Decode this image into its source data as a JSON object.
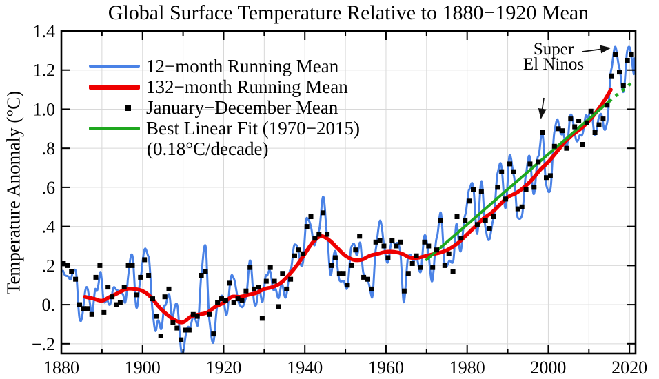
{
  "title": "Global Surface Temperature Relative to 1880−1920 Mean",
  "axes": {
    "y_label": "Temperature Anomaly (°C)",
    "y_ticks": [
      {
        "v": 1.4,
        "label": "1.4"
      },
      {
        "v": 1.2,
        "label": "1.2"
      },
      {
        "v": 1.0,
        "label": "1.0"
      },
      {
        "v": 0.8,
        "label": ".8"
      },
      {
        "v": 0.6,
        "label": ".6"
      },
      {
        "v": 0.4,
        "label": ".4"
      },
      {
        "v": 0.2,
        "label": ".2"
      },
      {
        "v": 0.0,
        "label": "0."
      },
      {
        "v": -0.2,
        "label": "−.2"
      }
    ],
    "x_ticks": [
      {
        "v": 1880,
        "label": "1880"
      },
      {
        "v": 1900,
        "label": "1900"
      },
      {
        "v": 1920,
        "label": "1920"
      },
      {
        "v": 1940,
        "label": "1940"
      },
      {
        "v": 1960,
        "label": "1960"
      },
      {
        "v": 1980,
        "label": "1980"
      },
      {
        "v": 2000,
        "label": "2000"
      },
      {
        "v": 2020,
        "label": "2020"
      }
    ],
    "x_minor_step": 10,
    "grid_color": "#d8d8d8",
    "frame_color": "#000000"
  },
  "legend": {
    "items": [
      {
        "label": "12−month Running Mean",
        "type": "line",
        "color": "#4a82e6"
      },
      {
        "label": "132−month Running Mean",
        "type": "line-thick",
        "color": "#ee0000"
      },
      {
        "label": "January−December Mean",
        "type": "square",
        "color": "#000000"
      },
      {
        "label": "Best Linear Fit (1970−2015)",
        "type": "line-mid",
        "color": "#1ea71e"
      }
    ],
    "sub_label": "(0.18°C/decade)"
  },
  "annotation": {
    "line1": "Super",
    "line2": "El Ninos",
    "targets": [
      {
        "year": 1998,
        "peak": 0.93
      },
      {
        "year": 2016,
        "peak": 1.32
      }
    ]
  },
  "chart_data": {
    "type": "line",
    "title": "Global Surface Temperature Relative to 1880−1920 Mean",
    "xlabel": "",
    "ylabel": "Temperature Anomaly (°C)",
    "xlim": [
      1880,
      2021.5
    ],
    "ylim": [
      -0.25,
      1.4
    ],
    "grid": true,
    "legend_position": "upper-left",
    "series": [
      {
        "name": "January−December Mean",
        "style": "black-squares",
        "color": "#000000",
        "start_year": 1880,
        "values": [
          0.21,
          0.2,
          0.17,
          0.13,
          0.0,
          -0.02,
          -0.02,
          -0.05,
          0.14,
          0.2,
          -0.04,
          0.09,
          0.04,
          0.0,
          0.01,
          0.09,
          0.2,
          0.2,
          0.05,
          0.14,
          0.23,
          0.15,
          0.03,
          -0.06,
          -0.16,
          0.04,
          0.08,
          -0.09,
          -0.12,
          -0.18,
          -0.13,
          -0.13,
          -0.05,
          -0.06,
          0.15,
          0.17,
          -0.05,
          -0.15,
          0.01,
          0.03,
          0.02,
          0.11,
          0.01,
          0.03,
          0.02,
          0.07,
          0.19,
          0.08,
          0.09,
          -0.07,
          0.12,
          0.19,
          0.12,
          -0.01,
          0.16,
          0.08,
          0.13,
          0.25,
          0.28,
          0.26,
          0.4,
          0.45,
          0.34,
          0.36,
          0.47,
          0.36,
          0.2,
          0.24,
          0.16,
          0.16,
          0.1,
          0.2,
          0.28,
          0.35,
          0.14,
          0.13,
          0.08,
          0.32,
          0.33,
          0.3,
          0.24,
          0.33,
          0.3,
          0.32,
          0.07,
          0.16,
          0.21,
          0.25,
          0.19,
          0.32,
          0.3,
          0.19,
          0.28,
          0.43,
          0.2,
          0.26,
          0.17,
          0.45,
          0.34,
          0.43,
          0.53,
          0.59,
          0.41,
          0.58,
          0.43,
          0.39,
          0.45,
          0.6,
          0.68,
          0.54,
          0.72,
          0.68,
          0.49,
          0.5,
          0.59,
          0.72,
          0.6,
          0.73,
          0.88,
          0.65,
          0.66,
          0.81,
          0.9,
          0.89,
          0.8,
          0.95,
          0.91,
          0.94,
          0.82,
          0.93,
          0.99,
          0.88,
          0.92,
          0.95,
          1.02,
          1.17,
          1.28,
          1.19,
          1.12,
          1.25,
          1.28
        ]
      },
      {
        "name": "132−month Running Mean",
        "style": "red-line",
        "color": "#ee0000",
        "points": [
          [
            1885.8,
            0.04
          ],
          [
            1888,
            0.03
          ],
          [
            1890,
            0.02
          ],
          [
            1892,
            0.04
          ],
          [
            1894,
            0.06
          ],
          [
            1896,
            0.08
          ],
          [
            1898,
            0.08
          ],
          [
            1900,
            0.07
          ],
          [
            1902,
            0.04
          ],
          [
            1904,
            -0.01
          ],
          [
            1906,
            -0.05
          ],
          [
            1908,
            -0.08
          ],
          [
            1910,
            -0.09
          ],
          [
            1912,
            -0.06
          ],
          [
            1914,
            -0.05
          ],
          [
            1916,
            -0.04
          ],
          [
            1918,
            -0.01
          ],
          [
            1920,
            0.01
          ],
          [
            1922,
            0.04
          ],
          [
            1924,
            0.04
          ],
          [
            1926,
            0.05
          ],
          [
            1928,
            0.06
          ],
          [
            1930,
            0.08
          ],
          [
            1932,
            0.09
          ],
          [
            1934,
            0.11
          ],
          [
            1936,
            0.15
          ],
          [
            1938,
            0.2
          ],
          [
            1940,
            0.26
          ],
          [
            1942,
            0.32
          ],
          [
            1944,
            0.35
          ],
          [
            1946,
            0.33
          ],
          [
            1948,
            0.29
          ],
          [
            1950,
            0.25
          ],
          [
            1952,
            0.23
          ],
          [
            1954,
            0.23
          ],
          [
            1956,
            0.25
          ],
          [
            1958,
            0.26
          ],
          [
            1960,
            0.27
          ],
          [
            1962,
            0.27
          ],
          [
            1964,
            0.26
          ],
          [
            1966,
            0.24
          ],
          [
            1968,
            0.24
          ],
          [
            1970,
            0.25
          ],
          [
            1972,
            0.26
          ],
          [
            1974,
            0.27
          ],
          [
            1976,
            0.29
          ],
          [
            1978,
            0.32
          ],
          [
            1980,
            0.36
          ],
          [
            1982,
            0.4
          ],
          [
            1984,
            0.44
          ],
          [
            1986,
            0.47
          ],
          [
            1988,
            0.51
          ],
          [
            1990,
            0.55
          ],
          [
            1992,
            0.57
          ],
          [
            1994,
            0.6
          ],
          [
            1996,
            0.64
          ],
          [
            1998,
            0.69
          ],
          [
            2000,
            0.73
          ],
          [
            2002,
            0.78
          ],
          [
            2004,
            0.83
          ],
          [
            2006,
            0.87
          ],
          [
            2008,
            0.9
          ],
          [
            2010,
            0.94
          ],
          [
            2012,
            0.99
          ],
          [
            2014,
            1.05
          ],
          [
            2015.4,
            1.1
          ]
        ]
      },
      {
        "name": "Best Linear Fit (1970−2015)",
        "style": "green-line",
        "color": "#1ea71e",
        "slope_c_per_decade": 0.18,
        "solid": [
          [
            1970,
            0.23
          ],
          [
            2015,
            1.04
          ]
        ],
        "dashed": [
          [
            2015,
            1.04
          ],
          [
            2021.3,
            1.148
          ]
        ]
      },
      {
        "name": "12−month Running Mean",
        "style": "blue-line",
        "color": "#4a82e6",
        "note": "oscillates around annual means; peaks 1998 ≈ 0.93 and 2016 ≈ 1.32 (Super El Ninos)",
        "render": {
          "start": [
            1879.8,
            0.1
          ],
          "end": [
            2021.15,
            1.26
          ],
          "clamp_min": -0.243,
          "osc_periods": [
            3.6,
            7.3,
            2.27
          ],
          "osc_amps": [
            0.05,
            0.03,
            0.024
          ],
          "osc_phase_years": [
            2016.2,
            1884.3,
            1880.8
          ],
          "early_gain": 1.3
        }
      }
    ]
  }
}
